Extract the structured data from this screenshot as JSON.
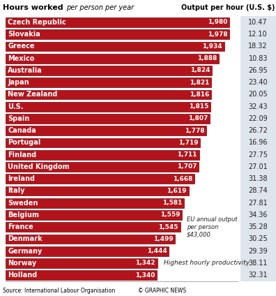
{
  "chart_data": {
    "type": "bar",
    "orientation": "horizontal",
    "title": "Hours worked",
    "subtitle": "per person per year",
    "categories": [
      "Czech Republic",
      "Slovakia",
      "Greece",
      "Mexico",
      "Australia",
      "Japan",
      "New Zealand",
      "U.S.",
      "Spain",
      "Canada",
      "Portugal",
      "Finland",
      "United Kingdom",
      "Ireland",
      "Italy",
      "Sweden",
      "Belgium",
      "France",
      "Denmark",
      "Germany",
      "Norway",
      "Holland"
    ],
    "values": [
      1980,
      1978,
      1934,
      1888,
      1824,
      1821,
      1816,
      1815,
      1807,
      1778,
      1719,
      1711,
      1707,
      1668,
      1619,
      1581,
      1559,
      1545,
      1499,
      1444,
      1342,
      1340
    ],
    "value_labels": [
      "1,980",
      "1,978",
      "1,934",
      "1,888",
      "1,824",
      "1,821",
      "1,816",
      "1,815",
      "1,807",
      "1,778",
      "1,719",
      "1,711",
      "1,707",
      "1,668",
      "1,619",
      "1,581",
      "1,559",
      "1,545",
      "1,499",
      "1,444",
      "1,342",
      "1,340"
    ],
    "data_labels": true,
    "color": "#b3141c",
    "xlim": [
      0,
      2050
    ],
    "xticks": [],
    "tick_labels": false,
    "grid": false,
    "output_per_hour": {
      "title": "Output per hour (U.S. $)",
      "values": [
        10.47,
        12.1,
        18.32,
        10.83,
        26.95,
        23.4,
        20.05,
        32.43,
        22.09,
        26.72,
        16.96,
        27.75,
        27.01,
        31.38,
        28.74,
        27.81,
        34.36,
        35.28,
        30.25,
        29.39,
        38.11,
        32.31
      ]
    },
    "annotations": [
      {
        "text": "EU annual output per person $43,000",
        "category": "France"
      },
      {
        "text": "Highest hourly productivity",
        "category": "Norway"
      }
    ],
    "source": "Source: International Labour Organisation",
    "credit": "© GRAPHIC NEWS"
  }
}
